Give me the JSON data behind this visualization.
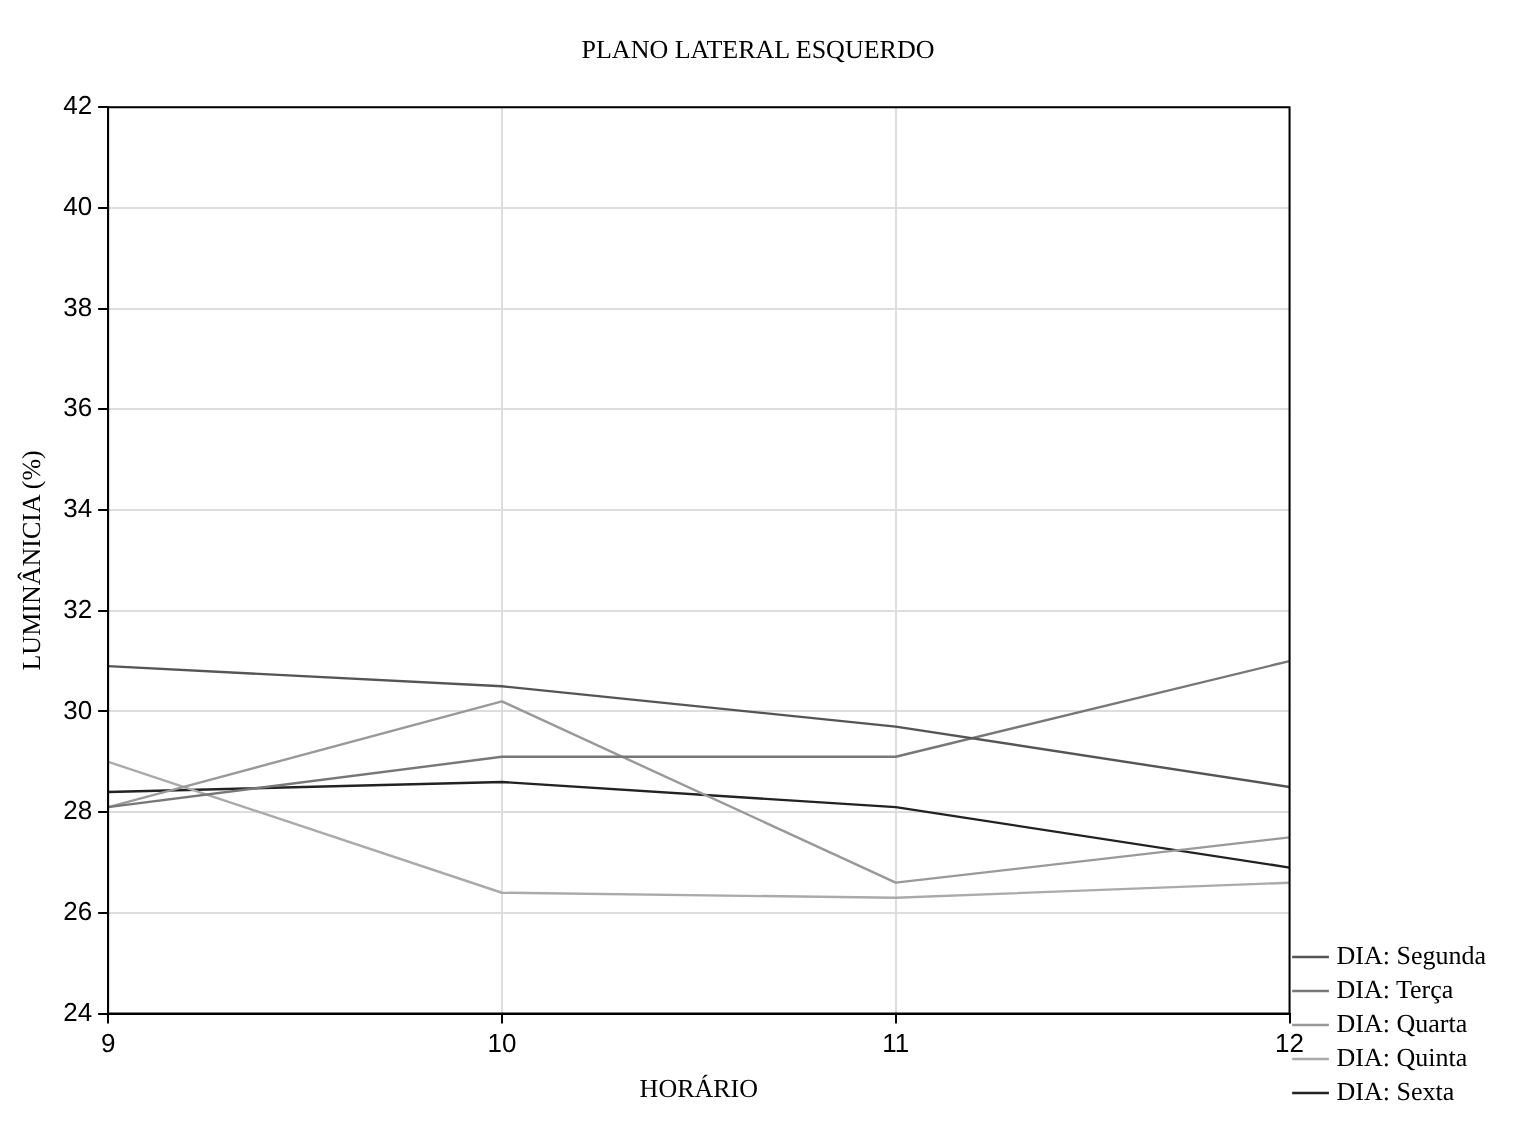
{
  "chart_data": {
    "type": "line",
    "title": "PLANO LATERAL ESQUERDO",
    "xlabel": "HORÁRIO",
    "ylabel": "LUMINÂNICIA (%)",
    "x": [
      9,
      10,
      11,
      12
    ],
    "series": [
      {
        "name": "DIA: Segunda",
        "color": "#555555",
        "values": [
          30.9,
          30.5,
          29.7,
          28.5
        ]
      },
      {
        "name": "DIA: Terça",
        "color": "#777777",
        "values": [
          28.1,
          29.1,
          29.1,
          31.0
        ]
      },
      {
        "name": "DIA: Quarta",
        "color": "#999999",
        "values": [
          28.1,
          30.2,
          26.6,
          27.5
        ]
      },
      {
        "name": "DIA: Quinta",
        "color": "#aaaaaa",
        "values": [
          29.0,
          26.4,
          26.3,
          26.6
        ]
      },
      {
        "name": "DIA: Sexta",
        "color": "#222222",
        "values": [
          28.4,
          28.6,
          28.1,
          26.9
        ]
      }
    ],
    "xlim": [
      9,
      12
    ],
    "xticks": [
      9,
      10,
      11,
      12
    ],
    "ylim": [
      24,
      42
    ],
    "yticks": [
      24,
      26,
      28,
      30,
      32,
      34,
      36,
      38,
      40,
      42
    ],
    "grid": true,
    "legend": "bottom right",
    "marker": "none",
    "line_style": "solid"
  }
}
